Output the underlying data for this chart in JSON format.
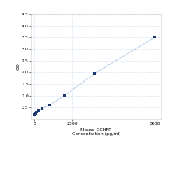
{
  "x": [
    0,
    62.5,
    125,
    250,
    500,
    1000,
    2000,
    4000,
    8000
  ],
  "y": [
    0.2,
    0.25,
    0.3,
    0.35,
    0.45,
    0.6,
    1.0,
    1.95,
    3.5
  ],
  "line_color": "#b8d0e8",
  "marker_color": "#1a3a6e",
  "marker_style": "s",
  "marker_size": 3,
  "xlabel_line1": "2500",
  "xlabel_line2": "Mouse GCHFR",
  "xlabel_line3": "Concentration (pg/ml)",
  "ylabel": "OD",
  "xlim": [
    -200,
    8400
  ],
  "ylim": [
    0.0,
    4.5
  ],
  "yticks": [
    0.5,
    1.0,
    1.5,
    2.0,
    2.5,
    3.0,
    3.5,
    4.0,
    4.5
  ],
  "xticks": [
    0,
    2500,
    8000
  ],
  "xticklabels": [
    "0",
    "2500",
    "8000"
  ],
  "grid_color": "#d8e4f0",
  "background_color": "#ffffff",
  "font_size": 4.5,
  "linewidth": 0.8,
  "spine_color": "#cccccc"
}
